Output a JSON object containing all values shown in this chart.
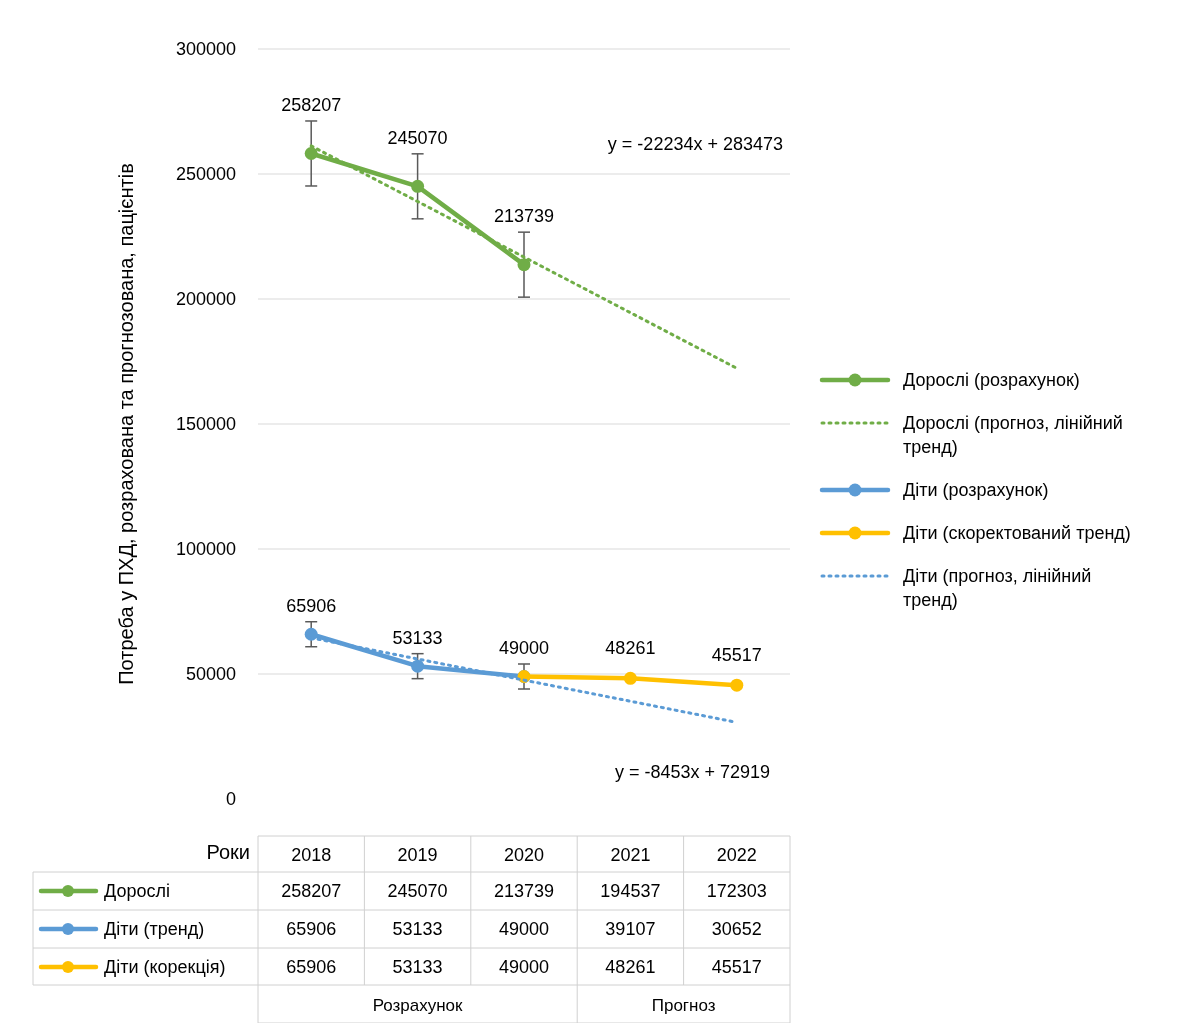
{
  "chart_data": {
    "type": "line",
    "ylabel": "Потреба у ПХД, розрахована та прогнозована, пацієнтів",
    "categories": [
      "2018",
      "2019",
      "2020",
      "2021",
      "2022"
    ],
    "ylim": [
      0,
      300000
    ],
    "yticks": [
      0,
      50000,
      100000,
      150000,
      200000,
      250000,
      300000
    ],
    "grid": "y",
    "legend": "right",
    "series": [
      {
        "name": "Дорослі (розрахунок)",
        "color": "#70ad47",
        "values": [
          258207,
          245070,
          213739,
          null,
          null
        ],
        "errors": [
          13000,
          13000,
          13000,
          null,
          null
        ],
        "value_labels": [
          "258207",
          "245070",
          "213739",
          null,
          null
        ],
        "marker": "circle",
        "line_style": "solid"
      },
      {
        "name": "Дорослі (прогноз, лінійний тренд)",
        "color": "#70ad47",
        "values": [
          261239,
          239005,
          216771,
          194537,
          172303
        ],
        "marker": "none",
        "line_style": "dotted"
      },
      {
        "name": "Діти (розрахунок)",
        "color": "#5b9bd5",
        "values": [
          65906,
          53133,
          49000,
          null,
          null
        ],
        "errors": [
          5000,
          5000,
          5000,
          null,
          null
        ],
        "value_labels": [
          "65906",
          "53133",
          "49000",
          null,
          null
        ],
        "marker": "circle",
        "line_style": "solid"
      },
      {
        "name": "Діти (скоректований тренд)",
        "color": "#ffc000",
        "values": [
          null,
          null,
          49000,
          48261,
          45517
        ],
        "value_labels": [
          null,
          null,
          null,
          "48261",
          "45517"
        ],
        "marker": "circle",
        "line_style": "solid"
      },
      {
        "name": "Діти (прогноз, лінійний тренд)",
        "color": "#5b9bd5",
        "values": [
          64466,
          56013,
          47560,
          39107,
          30652
        ],
        "marker": "none",
        "line_style": "dotted"
      }
    ],
    "annotations": [
      "y = -22234x + 283473",
      "y = -8453x + 72919",
      "Роки",
      "Розрахунок",
      "Прогноз",
      "Дорослі",
      "258207",
      "245070",
      "213739",
      "194537",
      "172303",
      "Діти (тренд)",
      "65906",
      "53133",
      "49000",
      "39107",
      "30652",
      "Діти (корекція)",
      "65906",
      "53133",
      "49000",
      "48261",
      "45517"
    ]
  }
}
